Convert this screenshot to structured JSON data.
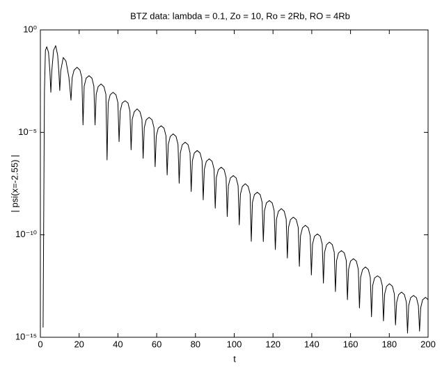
{
  "chart_data": {
    "type": "line",
    "title": "BTZ data: lambda = 0.1, Zo = 10, Ro = 2Rb, RO = 4Rb",
    "xlabel": "t",
    "ylabel": "| psi(x=-2.55) |",
    "yscale": "log",
    "grid": false,
    "xlim": [
      0,
      200
    ],
    "ylim": [
      1e-15,
      1
    ],
    "xticks": [
      0,
      20,
      40,
      60,
      80,
      100,
      120,
      140,
      160,
      180,
      200
    ],
    "yticks": [
      {
        "value": 1,
        "label": "10⁰"
      },
      {
        "value": 1e-05,
        "label": "10⁻⁵"
      },
      {
        "value": 1e-10,
        "label": "10⁻¹⁰"
      },
      {
        "value": 1e-15,
        "label": "10⁻¹⁵"
      }
    ],
    "series": [
      {
        "color": "#000000",
        "x": [
          1.4,
          2.1,
          2.6,
          3.3,
          4.2,
          4.9,
          5.4,
          5.9,
          6.8,
          7.9,
          8.9,
          9.5,
          10.0,
          10.5,
          11.8,
          13.2,
          14.7,
          15.2,
          15.8,
          16.4,
          17.4,
          18.9,
          20.4,
          21.4,
          22.0,
          22.6,
          23.6,
          25.1,
          26.6,
          27.6,
          28.2,
          28.8,
          29.8,
          31.3,
          32.8,
          33.8,
          34.4,
          35.0,
          36.0,
          37.5,
          39.0,
          40.0,
          40.6,
          41.2,
          42.2,
          43.7,
          45.2,
          46.2,
          46.8,
          47.4,
          48.4,
          49.9,
          51.4,
          52.4,
          53.0,
          53.6,
          54.6,
          56.1,
          57.6,
          58.6,
          59.2,
          59.8,
          60.8,
          62.3,
          63.8,
          64.8,
          65.4,
          66.0,
          67.0,
          68.5,
          70.0,
          71.0,
          71.6,
          72.2,
          73.2,
          74.7,
          76.2,
          77.2,
          77.8,
          78.4,
          79.4,
          80.9,
          82.4,
          83.4,
          84.0,
          84.6,
          85.6,
          87.1,
          88.6,
          89.6,
          90.2,
          90.8,
          91.8,
          93.3,
          94.8,
          95.8,
          96.4,
          97.0,
          98.0,
          99.5,
          101.0,
          102.0,
          102.6,
          103.2,
          104.2,
          105.7,
          107.2,
          108.2,
          108.8,
          109.4,
          110.4,
          111.9,
          113.4,
          114.4,
          115.0,
          115.6,
          116.6,
          118.1,
          119.6,
          120.6,
          121.2,
          121.8,
          122.8,
          124.3,
          125.8,
          126.8,
          127.4,
          128.0,
          129.0,
          130.5,
          132.0,
          133.0,
          133.6,
          134.2,
          135.2,
          136.7,
          138.2,
          139.2,
          139.8,
          140.4,
          141.4,
          142.9,
          144.4,
          145.4,
          146.0,
          146.6,
          147.6,
          149.1,
          150.6,
          151.6,
          152.2,
          152.8,
          153.8,
          155.3,
          156.8,
          157.8,
          158.4,
          159.0,
          160.0,
          161.5,
          163.0,
          164.0,
          164.6,
          165.2,
          166.2,
          167.7,
          169.2,
          170.2,
          170.8,
          171.4,
          172.4,
          173.9,
          175.4,
          176.4,
          177.0,
          177.6,
          178.6,
          180.1,
          181.6,
          182.6,
          183.2,
          183.8,
          184.8,
          186.3,
          187.8,
          188.8,
          189.4,
          190.0,
          191.0,
          192.5,
          194.0,
          195.0,
          195.6,
          196.2,
          197.2,
          198.7,
          200.0
        ],
        "values": [
          3e-15,
          0.001,
          0.1,
          0.15,
          0.08,
          0.01,
          0.0009,
          0.01,
          0.1,
          0.17,
          0.06,
          0.01,
          0.0011,
          0.01,
          0.045,
          0.03,
          0.005,
          0.0016,
          0.00037,
          0.0047,
          0.011,
          0.015,
          0.011,
          0.0047,
          2.3e-05,
          0.0018,
          0.0044,
          0.0058,
          0.0044,
          0.0018,
          2.3e-05,
          0.00072,
          0.0017,
          0.0023,
          0.0017,
          0.00072,
          4.5e-07,
          0.00028,
          0.00068,
          0.0009,
          0.00068,
          0.00028,
          3.5e-06,
          0.00011,
          0.00027,
          0.00035,
          0.00027,
          0.00011,
          1.4e-06,
          4.4e-05,
          0.0001,
          0.00014,
          0.0001,
          4.4e-05,
          5.4e-07,
          1.7e-05,
          4.1e-05,
          5.4e-05,
          4.1e-05,
          1.7e-05,
          2.1e-07,
          6.7e-06,
          1.6e-05,
          2.1e-05,
          1.6e-05,
          6.7e-06,
          8.4e-08,
          2.6e-06,
          6.3e-06,
          8.4e-06,
          6.3e-06,
          2.6e-06,
          3.3e-08,
          1e-06,
          2.5e-06,
          3.3e-06,
          2.5e-06,
          1e-06,
          1.3e-08,
          4.1e-07,
          9.8e-07,
          1.3e-06,
          9.8e-07,
          4.1e-07,
          5.1e-09,
          1.6e-07,
          3.8e-07,
          5.1e-07,
          3.8e-07,
          1.6e-07,
          2e-09,
          6.3e-08,
          1.5e-07,
          2e-07,
          1.5e-07,
          6.3e-08,
          7.8e-10,
          2.5e-08,
          5.9e-08,
          7.8e-08,
          5.9e-08,
          2.5e-08,
          3.1e-10,
          9.7e-09,
          2.3e-08,
          3.1e-08,
          2.3e-08,
          9.7e-09,
          4.8e-11,
          3.8e-09,
          9.1e-09,
          1.2e-08,
          9.1e-09,
          3.8e-09,
          4.7e-11,
          1.5e-09,
          3.6e-09,
          4.7e-09,
          3.6e-09,
          1.5e-09,
          1.9e-11,
          5.9e-10,
          1.4e-09,
          1.9e-09,
          1.4e-09,
          5.9e-10,
          7.3e-12,
          2.3e-10,
          5.5e-10,
          7.3e-10,
          5.5e-10,
          2.3e-10,
          2.9e-12,
          9e-11,
          2.2e-10,
          2.9e-10,
          2.2e-10,
          9e-11,
          1.1e-12,
          3.5e-11,
          8.5e-11,
          1.1e-10,
          8.5e-11,
          3.5e-11,
          4.4e-13,
          1.4e-11,
          3.3e-11,
          4.4e-11,
          3.3e-11,
          1.4e-11,
          1.7e-13,
          5.5e-12,
          1.3e-11,
          1.7e-11,
          1.3e-11,
          5.5e-12,
          6.8e-14,
          2.1e-12,
          5.2e-12,
          6.8e-12,
          5.2e-12,
          2.1e-12,
          2.7e-14,
          8.4e-13,
          2e-12,
          2.7e-12,
          2e-12,
          8.4e-13,
          1e-14,
          3.3e-13,
          7.9e-13,
          1e-12,
          7.9e-13,
          3.3e-13,
          6.3e-15,
          1.3e-13,
          3.1e-13,
          4.1e-13,
          3.1e-13,
          1.3e-13,
          4e-15,
          5.1e-14,
          1.2e-13,
          1.6e-13,
          1.2e-13,
          5.1e-14,
          1.6e-15,
          3.5e-14,
          8.5e-14,
          1.1e-13,
          8.5e-14,
          3.5e-14,
          2e-15,
          2.8e-14,
          6.8e-14,
          8.9e-14,
          6.8e-14
        ]
      }
    ]
  }
}
